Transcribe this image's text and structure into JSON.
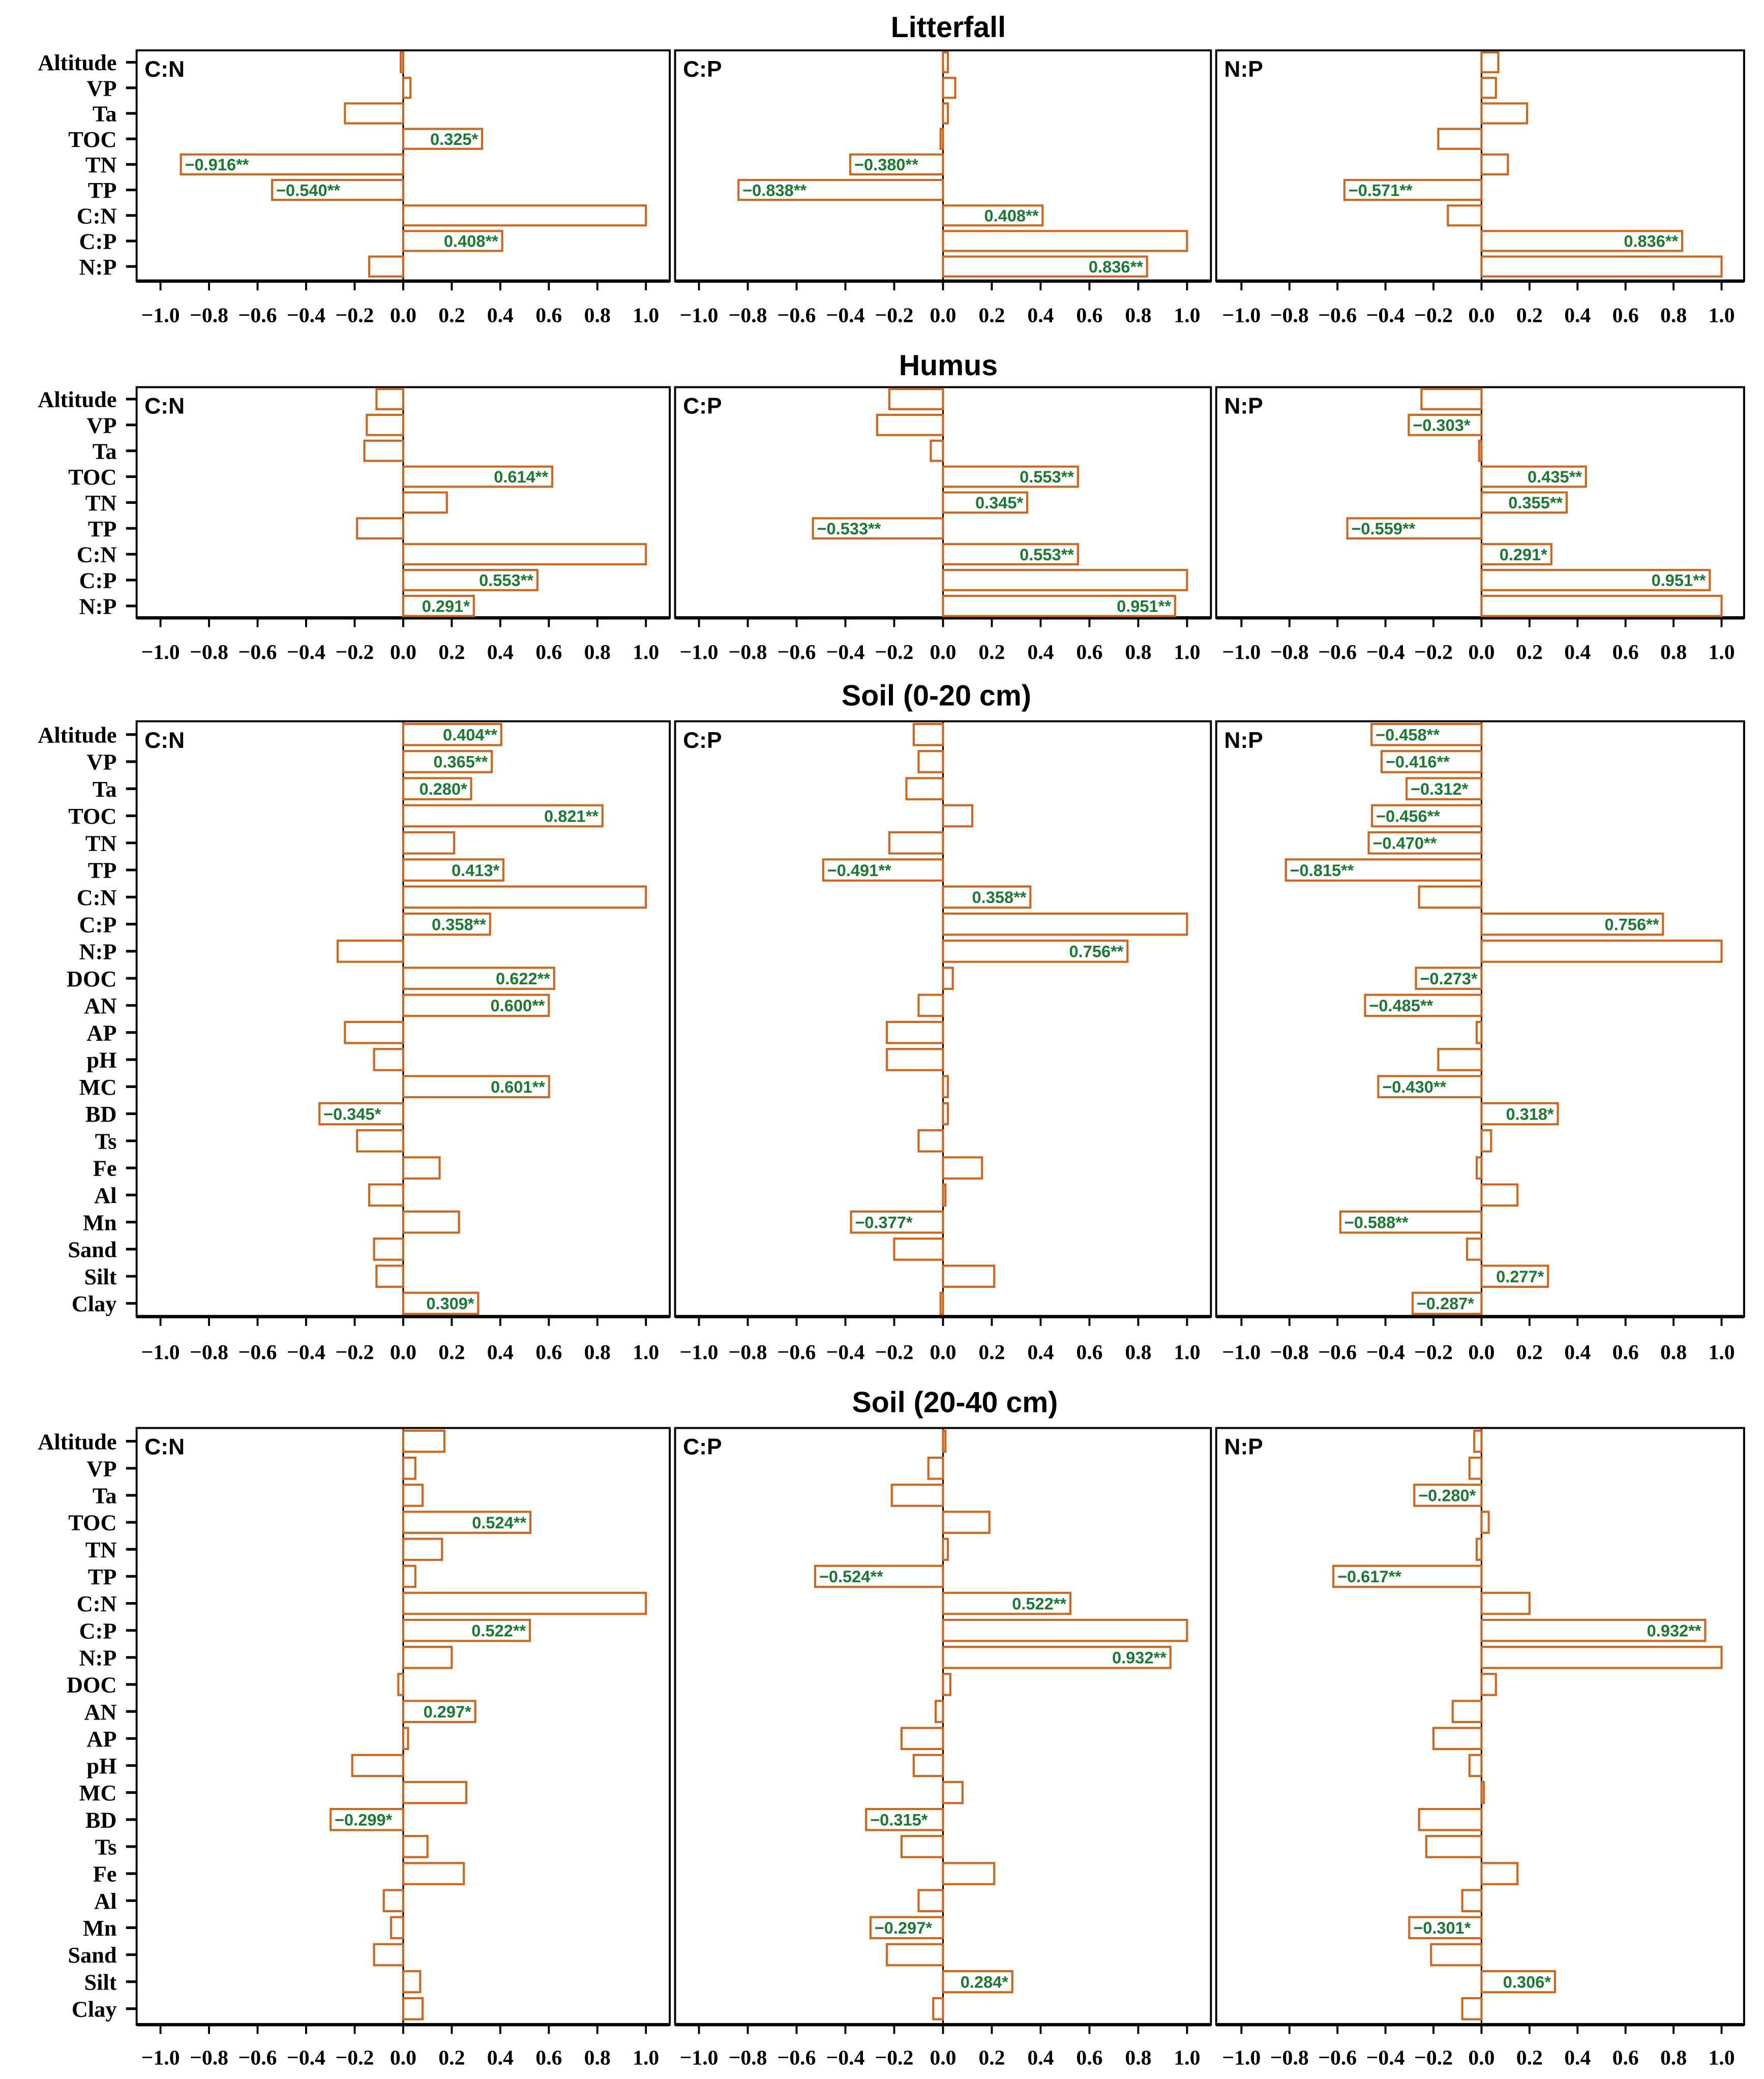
{
  "colors": {
    "bar": "#d0661e",
    "label": "#1a7a30",
    "axis": "#000000"
  },
  "chart_data": [
    {
      "type": "bar",
      "title": "Litterfall",
      "xlim": [
        -1,
        1
      ],
      "xticks": [
        "−1.0",
        "−0.8",
        "−0.6",
        "−0.4",
        "−0.2",
        "0.0",
        "0.2",
        "0.4",
        "0.6",
        "0.8",
        "1.0"
      ],
      "categories": [
        "Altitude",
        "VP",
        "Ta",
        "TOC",
        "TN",
        "TP",
        "C:N",
        "C:P",
        "N:P"
      ],
      "panels": [
        {
          "name": "C:N",
          "values": [
            -0.01,
            0.03,
            -0.24,
            0.325,
            -0.916,
            -0.54,
            1.0,
            0.408,
            -0.14
          ],
          "labels": [
            "",
            "",
            "",
            "0.325*",
            "−0.916**",
            "−0.540**",
            "",
            "0.408**",
            ""
          ]
        },
        {
          "name": "C:P",
          "values": [
            0.02,
            0.05,
            0.02,
            -0.01,
            -0.38,
            -0.838,
            0.408,
            1.0,
            0.836
          ],
          "labels": [
            "",
            "",
            "",
            "",
            "−0.380**",
            "−0.838**",
            "0.408**",
            "",
            "0.836**"
          ]
        },
        {
          "name": "N:P",
          "values": [
            0.07,
            0.06,
            0.19,
            -0.18,
            0.11,
            -0.571,
            -0.14,
            0.836,
            1.0
          ],
          "labels": [
            "",
            "",
            "",
            "",
            "",
            "−0.571**",
            "",
            "0.836**",
            ""
          ]
        }
      ]
    },
    {
      "type": "bar",
      "title": "Humus",
      "xlim": [
        -1,
        1
      ],
      "xticks": [
        "−1.0",
        "−0.8",
        "−0.6",
        "−0.4",
        "−0.2",
        "0.0",
        "0.2",
        "0.4",
        "0.6",
        "0.8",
        "1.0"
      ],
      "categories": [
        "Altitude",
        "VP",
        "Ta",
        "TOC",
        "TN",
        "TP",
        "C:N",
        "C:P",
        "N:P"
      ],
      "panels": [
        {
          "name": "C:N",
          "values": [
            -0.11,
            -0.15,
            -0.16,
            0.614,
            0.18,
            -0.19,
            1.0,
            0.553,
            0.291
          ],
          "labels": [
            "",
            "",
            "",
            "0.614**",
            "",
            "",
            "",
            "0.553**",
            "0.291*"
          ]
        },
        {
          "name": "C:P",
          "values": [
            -0.22,
            -0.27,
            -0.05,
            0.553,
            0.345,
            -0.533,
            0.553,
            1.0,
            0.951
          ],
          "labels": [
            "",
            "",
            "",
            "0.553**",
            "0.345*",
            "−0.533**",
            "0.553**",
            "",
            "0.951**"
          ]
        },
        {
          "name": "N:P",
          "values": [
            -0.25,
            -0.303,
            -0.01,
            0.435,
            0.355,
            -0.559,
            0.291,
            0.951,
            1.0
          ],
          "labels": [
            "",
            "−0.303*",
            "",
            "0.435**",
            "0.355**",
            "−0.559**",
            "0.291*",
            "0.951**",
            ""
          ]
        }
      ]
    },
    {
      "type": "bar",
      "title": "Soil (0-20 cm)",
      "xlim": [
        -1,
        1
      ],
      "xticks": [
        "−1.0",
        "−0.8",
        "−0.6",
        "−0.4",
        "−0.2",
        "0.0",
        "0.2",
        "0.4",
        "0.6",
        "0.8",
        "1.0"
      ],
      "categories": [
        "Altitude",
        "VP",
        "Ta",
        "TOC",
        "TN",
        "TP",
        "C:N",
        "C:P",
        "N:P",
        "DOC",
        "AN",
        "AP",
        "pH",
        "MC",
        "BD",
        "Ts",
        "Fe",
        "Al",
        "Mn",
        "Sand",
        "Silt",
        "Clay"
      ],
      "panels": [
        {
          "name": "C:N",
          "values": [
            0.404,
            0.365,
            0.28,
            0.821,
            0.21,
            0.413,
            1.0,
            0.358,
            -0.27,
            0.622,
            0.6,
            -0.24,
            -0.12,
            0.601,
            -0.345,
            -0.19,
            0.15,
            -0.14,
            0.23,
            -0.12,
            -0.11,
            0.309
          ],
          "labels": [
            "0.404**",
            "0.365**",
            "0.280*",
            "0.821**",
            "",
            "0.413*",
            "",
            "0.358**",
            "",
            "0.622**",
            "0.600**",
            "",
            "",
            "0.601**",
            "−0.345*",
            "",
            "",
            "",
            "",
            "",
            "",
            "0.309*"
          ]
        },
        {
          "name": "C:P",
          "values": [
            -0.12,
            -0.1,
            -0.15,
            0.12,
            -0.22,
            -0.491,
            0.358,
            1.0,
            0.756,
            0.04,
            -0.1,
            -0.23,
            -0.23,
            0.02,
            0.02,
            -0.1,
            0.16,
            0.01,
            -0.377,
            -0.2,
            0.21,
            -0.01
          ],
          "labels": [
            "",
            "",
            "",
            "",
            "",
            "−0.491**",
            "0.358**",
            "",
            "0.756**",
            "",
            "",
            "",
            "",
            "",
            "",
            "",
            "",
            "",
            "−0.377*",
            "",
            "",
            ""
          ]
        },
        {
          "name": "N:P",
          "values": [
            -0.458,
            -0.416,
            -0.312,
            -0.456,
            -0.47,
            -0.815,
            -0.26,
            0.756,
            1.0,
            -0.273,
            -0.485,
            -0.02,
            -0.18,
            -0.43,
            0.318,
            0.04,
            -0.02,
            0.15,
            -0.588,
            -0.06,
            0.277,
            -0.287
          ],
          "labels": [
            "−0.458**",
            "−0.416**",
            "−0.312*",
            "−0.456**",
            "−0.470**",
            "−0.815**",
            "",
            "0.756**",
            "",
            "−0.273*",
            "−0.485**",
            "",
            "",
            "−0.430**",
            "0.318*",
            "",
            "",
            "",
            "−0.588**",
            "",
            "0.277*",
            "−0.287*"
          ]
        }
      ]
    },
    {
      "type": "bar",
      "title": "Soil (20-40 cm)",
      "xlim": [
        -1,
        1
      ],
      "xticks": [
        "−1.0",
        "−0.8",
        "−0.6",
        "−0.4",
        "−0.2",
        "0.0",
        "0.2",
        "0.4",
        "0.6",
        "0.8",
        "1.0"
      ],
      "categories": [
        "Altitude",
        "VP",
        "Ta",
        "TOC",
        "TN",
        "TP",
        "C:N",
        "C:P",
        "N:P",
        "DOC",
        "AN",
        "AP",
        "pH",
        "MC",
        "BD",
        "Ts",
        "Fe",
        "Al",
        "Mn",
        "Sand",
        "Silt",
        "Clay"
      ],
      "panels": [
        {
          "name": "C:N",
          "values": [
            0.17,
            0.05,
            0.08,
            0.524,
            0.16,
            0.05,
            1.0,
            0.522,
            0.2,
            -0.02,
            0.297,
            0.02,
            -0.21,
            0.26,
            -0.299,
            0.1,
            0.25,
            -0.08,
            -0.05,
            -0.12,
            0.07,
            0.08
          ],
          "labels": [
            "",
            "",
            "",
            "0.524**",
            "",
            "",
            "",
            "0.522**",
            "",
            "",
            "0.297*",
            "",
            "",
            "",
            "−0.299*",
            "",
            "",
            "",
            "",
            "",
            "",
            ""
          ]
        },
        {
          "name": "C:P",
          "values": [
            0.01,
            -0.06,
            -0.21,
            0.19,
            0.02,
            -0.524,
            0.522,
            1.0,
            0.932,
            0.03,
            -0.03,
            -0.17,
            -0.12,
            0.08,
            -0.315,
            -0.17,
            0.21,
            -0.1,
            -0.297,
            -0.23,
            0.284,
            -0.04
          ],
          "labels": [
            "",
            "",
            "",
            "",
            "",
            "−0.524**",
            "0.522**",
            "",
            "0.932**",
            "",
            "",
            "",
            "",
            "",
            "−0.315*",
            "",
            "",
            "",
            "−0.297*",
            "",
            "0.284*",
            ""
          ]
        },
        {
          "name": "N:P",
          "values": [
            -0.03,
            -0.05,
            -0.28,
            0.03,
            -0.02,
            -0.617,
            0.2,
            0.932,
            1.0,
            0.06,
            -0.12,
            -0.2,
            -0.05,
            0.01,
            -0.26,
            -0.23,
            0.15,
            -0.08,
            -0.301,
            -0.21,
            0.306,
            -0.08
          ],
          "labels": [
            "",
            "",
            "−0.280*",
            "",
            "",
            "−0.617**",
            "",
            "0.932**",
            "",
            "",
            "",
            "",
            "",
            "",
            "",
            "",
            "",
            "",
            "−0.301*",
            "",
            "0.306*",
            ""
          ]
        }
      ]
    }
  ]
}
